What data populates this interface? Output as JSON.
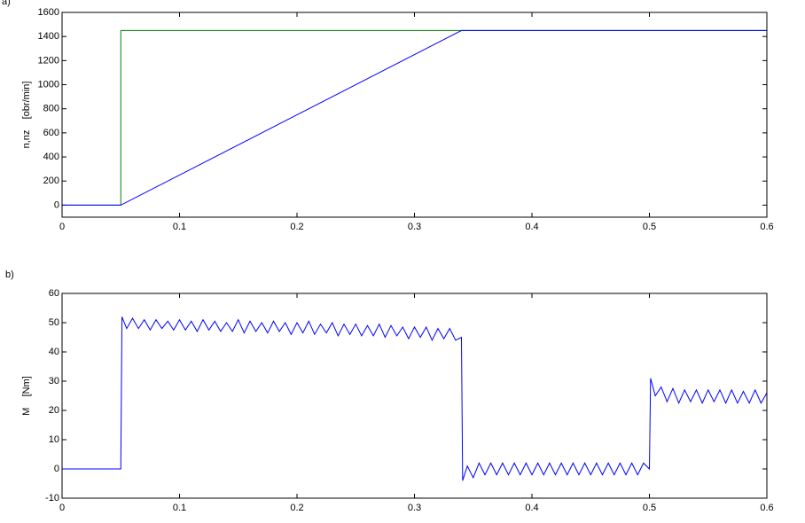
{
  "chart_data": [
    {
      "type": "line",
      "panel_label": "a)",
      "ylabel": "n,nz    [obr/min]",
      "x": [
        0,
        0.05,
        0.05,
        0.34,
        0.6
      ],
      "series": [
        {
          "color": "#008000",
          "values": [
            0,
            0,
            1450,
            1450,
            1450
          ]
        },
        {
          "color": "#0000ff",
          "values": [
            0,
            0,
            0,
            1450,
            1450
          ]
        }
      ],
      "xlim": [
        0,
        0.6
      ],
      "xticks": [
        0,
        0.1,
        0.2,
        0.3,
        0.4,
        0.5,
        0.6
      ],
      "ylim": [
        -100,
        1600
      ],
      "yticks": [
        0,
        200,
        400,
        600,
        800,
        1000,
        1200,
        1400,
        1600
      ]
    },
    {
      "type": "line",
      "panel_label": "b)",
      "ylabel": "M    [Nm]",
      "x": [
        0,
        0.01,
        0.02,
        0.03,
        0.04,
        0.05,
        0.051,
        0.055,
        0.06,
        0.065,
        0.07,
        0.075,
        0.08,
        0.085,
        0.09,
        0.095,
        0.1,
        0.105,
        0.11,
        0.115,
        0.12,
        0.125,
        0.13,
        0.135,
        0.14,
        0.145,
        0.15,
        0.155,
        0.16,
        0.165,
        0.17,
        0.175,
        0.18,
        0.185,
        0.19,
        0.195,
        0.2,
        0.205,
        0.21,
        0.215,
        0.22,
        0.225,
        0.23,
        0.235,
        0.24,
        0.245,
        0.25,
        0.255,
        0.26,
        0.265,
        0.27,
        0.275,
        0.28,
        0.285,
        0.29,
        0.295,
        0.3,
        0.305,
        0.31,
        0.315,
        0.32,
        0.325,
        0.33,
        0.335,
        0.34,
        0.341,
        0.345,
        0.35,
        0.355,
        0.36,
        0.365,
        0.37,
        0.375,
        0.38,
        0.385,
        0.39,
        0.395,
        0.4,
        0.405,
        0.41,
        0.415,
        0.42,
        0.425,
        0.43,
        0.435,
        0.44,
        0.445,
        0.45,
        0.455,
        0.46,
        0.465,
        0.47,
        0.475,
        0.48,
        0.485,
        0.49,
        0.495,
        0.5,
        0.501,
        0.505,
        0.51,
        0.515,
        0.52,
        0.525,
        0.53,
        0.535,
        0.54,
        0.545,
        0.55,
        0.555,
        0.56,
        0.565,
        0.57,
        0.575,
        0.58,
        0.585,
        0.59,
        0.595,
        0.6
      ],
      "series": [
        {
          "color": "#0000ff",
          "values": [
            0,
            0,
            0,
            0,
            0,
            0,
            52,
            48,
            51.5,
            48,
            51,
            47.5,
            51,
            48,
            50.5,
            47.5,
            51,
            47.5,
            50.5,
            47,
            51,
            47.5,
            50.5,
            47,
            50,
            47,
            51,
            46.5,
            50.5,
            47,
            50,
            46.5,
            50.5,
            47,
            50,
            46,
            50,
            46.5,
            50.5,
            46,
            49.5,
            46.5,
            50,
            45.5,
            49.5,
            46,
            49.5,
            45.5,
            49,
            45.5,
            49.5,
            45,
            49,
            45.5,
            48.5,
            44.5,
            48.5,
            45,
            48.5,
            44,
            48,
            44.5,
            48,
            44,
            45,
            -4,
            1,
            -3,
            2,
            -2,
            2,
            -2,
            2,
            -2,
            2,
            -2,
            2,
            -2,
            2,
            -2,
            2,
            -2,
            2,
            -2,
            2,
            -2,
            2,
            -2,
            2,
            -2,
            2,
            -2,
            2,
            -2,
            2,
            -2,
            2,
            0,
            31,
            25,
            28,
            23,
            27.5,
            22.5,
            27,
            23,
            27,
            22.5,
            27,
            23,
            27,
            22.5,
            27,
            22.5,
            26.5,
            22.5,
            27,
            22.5,
            26
          ]
        }
      ],
      "xlim": [
        0,
        0.6
      ],
      "xticks": [
        0,
        0.1,
        0.2,
        0.3,
        0.4,
        0.5,
        0.6
      ],
      "ylim": [
        -10,
        60
      ],
      "yticks": [
        -10,
        0,
        10,
        20,
        30,
        40,
        50,
        60
      ]
    }
  ]
}
